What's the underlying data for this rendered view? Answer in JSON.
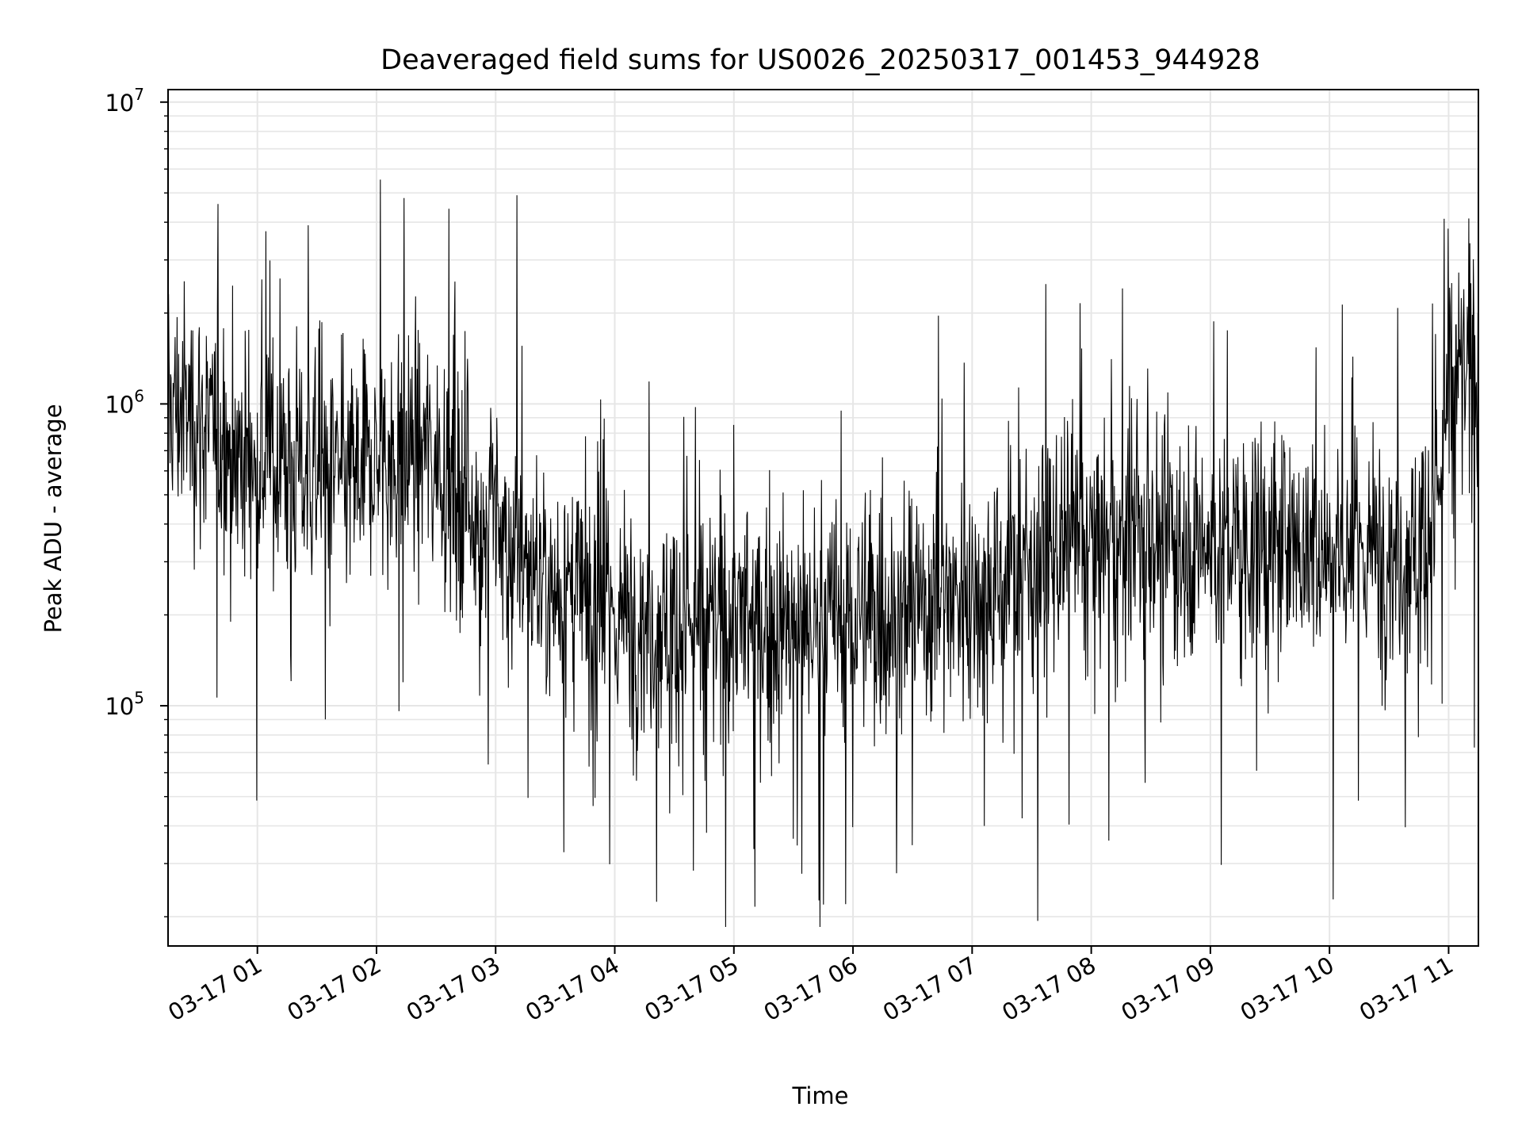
{
  "chart_data": {
    "type": "line",
    "title": "Deaveraged field sums for US0026_20250317_001453_944928",
    "xlabel": "Time",
    "ylabel": "Peak ADU - average",
    "yscale": "log",
    "x_range": [
      "2025-03-17 00:15",
      "2025-03-17 11:15"
    ],
    "ylim": [
      16000,
      11000000
    ],
    "grid": true,
    "line_color": "#000000",
    "grid_color": "#e6e6e6",
    "x_ticks": [
      {
        "time": "2025-03-17 01:00",
        "label": "03-17 01"
      },
      {
        "time": "2025-03-17 02:00",
        "label": "03-17 02"
      },
      {
        "time": "2025-03-17 03:00",
        "label": "03-17 03"
      },
      {
        "time": "2025-03-17 04:00",
        "label": "03-17 04"
      },
      {
        "time": "2025-03-17 05:00",
        "label": "03-17 05"
      },
      {
        "time": "2025-03-17 06:00",
        "label": "03-17 06"
      },
      {
        "time": "2025-03-17 07:00",
        "label": "03-17 07"
      },
      {
        "time": "2025-03-17 08:00",
        "label": "03-17 08"
      },
      {
        "time": "2025-03-17 09:00",
        "label": "03-17 09"
      },
      {
        "time": "2025-03-17 10:00",
        "label": "03-17 10"
      },
      {
        "time": "2025-03-17 11:00",
        "label": "03-17 11"
      }
    ],
    "y_ticks": [
      {
        "value": 100000,
        "base": "10",
        "exp": "5"
      },
      {
        "value": 1000000,
        "base": "10",
        "exp": "6"
      },
      {
        "value": 10000000,
        "base": "10",
        "exp": "7"
      }
    ],
    "series": [
      {
        "x": [
          "2025-03-17 00:15",
          "2025-03-17 00:30",
          "2025-03-17 00:45",
          "2025-03-17 01:00",
          "2025-03-17 01:15",
          "2025-03-17 01:30",
          "2025-03-17 01:45",
          "2025-03-17 02:00",
          "2025-03-17 02:15",
          "2025-03-17 02:30",
          "2025-03-17 02:45",
          "2025-03-17 03:00",
          "2025-03-17 03:15",
          "2025-03-17 03:30",
          "2025-03-17 03:45",
          "2025-03-17 04:00",
          "2025-03-17 04:15",
          "2025-03-17 04:30",
          "2025-03-17 04:45",
          "2025-03-17 05:00",
          "2025-03-17 05:15",
          "2025-03-17 05:30",
          "2025-03-17 05:45",
          "2025-03-17 06:00",
          "2025-03-17 06:15",
          "2025-03-17 06:30",
          "2025-03-17 06:45",
          "2025-03-17 07:00",
          "2025-03-17 07:15",
          "2025-03-17 07:30",
          "2025-03-17 07:45",
          "2025-03-17 08:00",
          "2025-03-17 08:15",
          "2025-03-17 08:30",
          "2025-03-17 08:45",
          "2025-03-17 09:00",
          "2025-03-17 09:15",
          "2025-03-17 09:30",
          "2025-03-17 09:45",
          "2025-03-17 10:00",
          "2025-03-17 10:15",
          "2025-03-17 10:30",
          "2025-03-17 10:45",
          "2025-03-17 10:55",
          "2025-03-17 11:00",
          "2025-03-17 11:15"
        ],
        "values": [
          1000000,
          900000,
          700000,
          650000,
          650000,
          580000,
          560000,
          650000,
          700000,
          700000,
          450000,
          400000,
          300000,
          250000,
          220000,
          200000,
          190000,
          190000,
          180000,
          200000,
          180000,
          180000,
          190000,
          200000,
          200000,
          210000,
          230000,
          240000,
          260000,
          300000,
          320000,
          340000,
          350000,
          360000,
          360000,
          340000,
          340000,
          340000,
          340000,
          340000,
          330000,
          330000,
          340000,
          500000,
          1100000,
          1400000
        ]
      }
    ]
  }
}
